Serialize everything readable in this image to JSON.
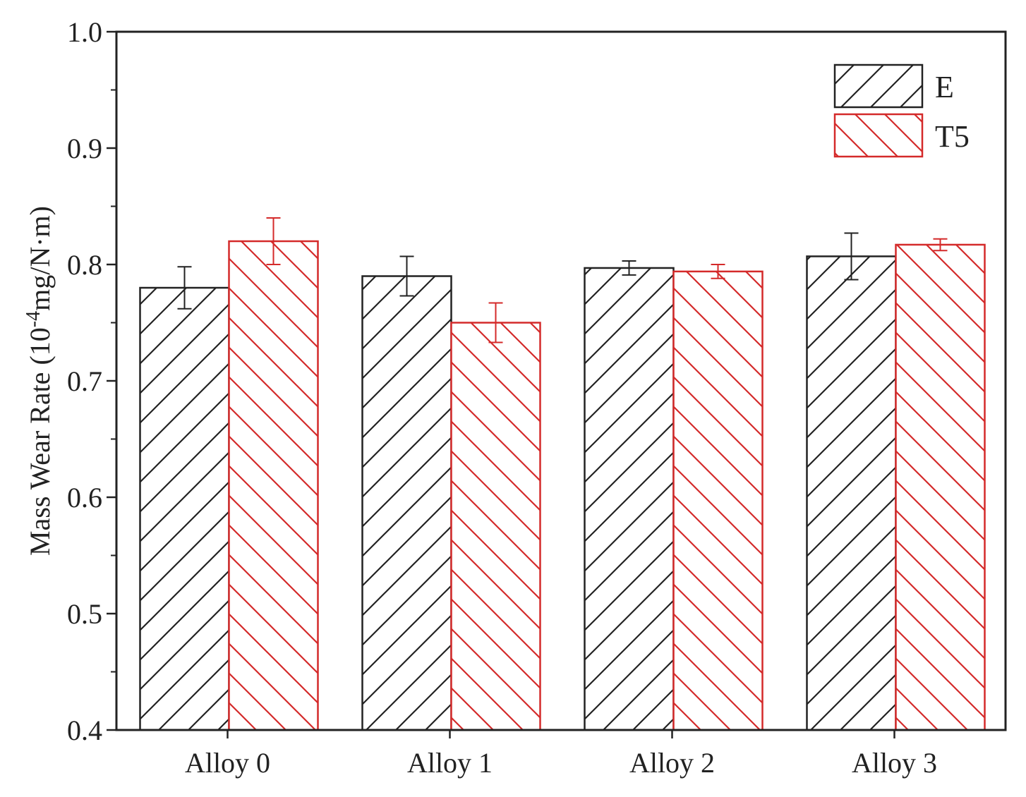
{
  "chart_data": {
    "type": "bar",
    "categories": [
      "Alloy 0",
      "Alloy 1",
      "Alloy 2",
      "Alloy 3"
    ],
    "series": [
      {
        "name": "E",
        "values": [
          0.78,
          0.79,
          0.797,
          0.807
        ],
        "errors": [
          0.018,
          0.017,
          0.006,
          0.02
        ],
        "color": "#222222",
        "hatch": "forward"
      },
      {
        "name": "T5",
        "values": [
          0.82,
          0.75,
          0.794,
          0.817
        ],
        "errors": [
          0.02,
          0.017,
          0.006,
          0.005
        ],
        "color": "#d42a2a",
        "hatch": "backward"
      }
    ],
    "ylabel_main": "Mass Wear Rate (10",
    "ylabel_sup": "-4",
    "ylabel_rest": "mg/N·m)",
    "xlabel": "",
    "ylim": [
      0.4,
      1.0
    ],
    "yticks": [
      "0.4",
      "0.5",
      "0.6",
      "0.7",
      "0.8",
      "0.9",
      "1.0"
    ],
    "legend_position": "top-right",
    "grid": false
  }
}
